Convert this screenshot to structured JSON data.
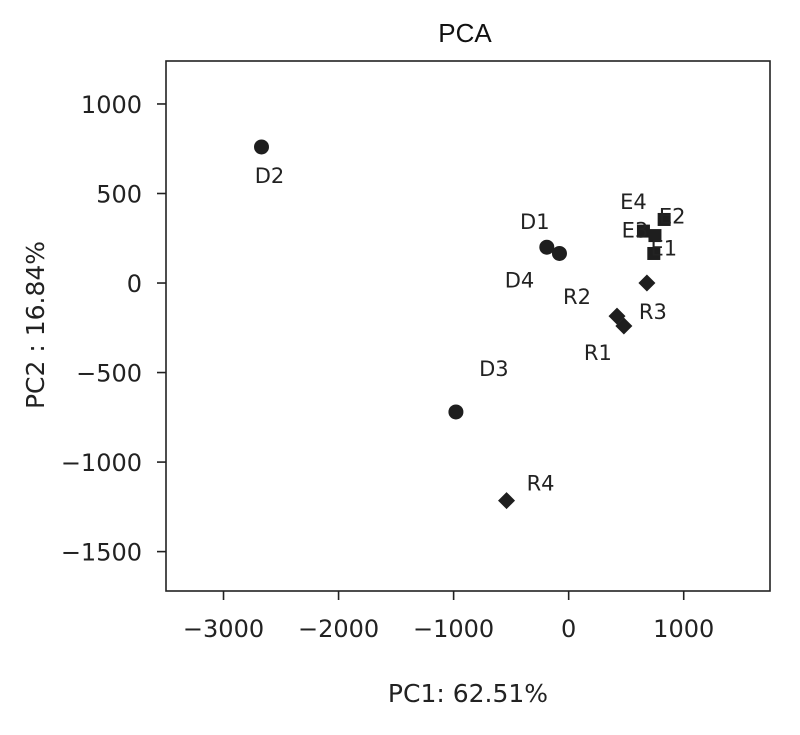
{
  "chart_data": {
    "type": "scatter",
    "title": "PCA",
    "xlabel": "PC1: 62.51%",
    "ylabel": "PC2 : 16.84%",
    "xlim": [
      -3500,
      1750
    ],
    "ylim": [
      -1720,
      1240
    ],
    "xticks": [
      -3000,
      -2000,
      -1000,
      0,
      1000
    ],
    "yticks": [
      1000,
      500,
      0,
      -500,
      -1000,
      -1500
    ],
    "xtick_labels": [
      "−3000",
      "−2000",
      "−1000",
      "0",
      "1000"
    ],
    "ytick_labels": [
      "1000",
      "500",
      "0",
      "−500",
      "−1000",
      "−1500"
    ],
    "grid": false,
    "legend": "none",
    "series": [
      {
        "marker": "circle",
        "points": [
          {
            "label": "D1",
            "x": -190,
            "y": 200
          },
          {
            "label": "D2",
            "x": -2670,
            "y": 760
          },
          {
            "label": "D3",
            "x": -980,
            "y": -720
          },
          {
            "label": "D4",
            "x": -80,
            "y": 165
          }
        ]
      },
      {
        "marker": "square",
        "points": [
          {
            "label": "E1",
            "x": 740,
            "y": 165
          },
          {
            "label": "E2",
            "x": 830,
            "y": 355
          },
          {
            "label": "E3",
            "x": 750,
            "y": 265
          },
          {
            "label": "E4",
            "x": 650,
            "y": 290
          }
        ]
      },
      {
        "marker": "diamond",
        "points": [
          {
            "label": "R1",
            "x": 480,
            "y": -240
          },
          {
            "label": "R2",
            "x": 420,
            "y": -185
          },
          {
            "label": "R3",
            "x": 680,
            "y": 0
          },
          {
            "label": "R4",
            "x": -540,
            "y": -1215
          }
        ]
      }
    ]
  }
}
